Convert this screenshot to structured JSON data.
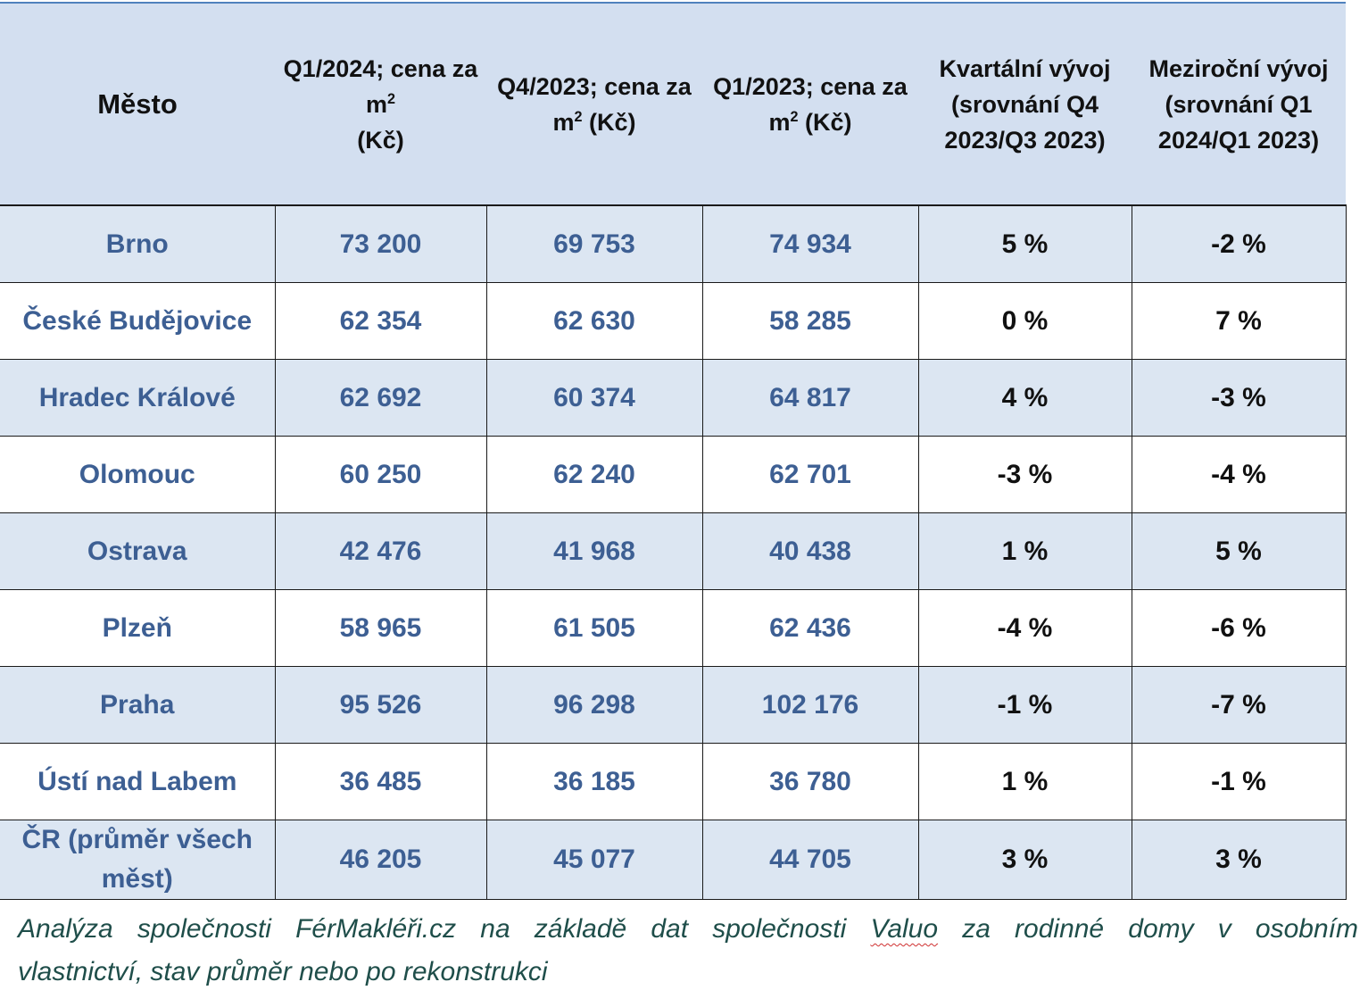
{
  "table": {
    "headers": {
      "city": "Město",
      "q1_2024": {
        "text": "Q1/2024; cena za m",
        "sup": "2",
        "unit": "(Kč)"
      },
      "q4_2023": {
        "text": "Q4/2023; cena za m",
        "sup": "2",
        "unit": "(Kč)"
      },
      "q1_2023": {
        "text": "Q1/2023; cena za m",
        "sup": "2",
        "unit": "(Kč)"
      },
      "quarterly": "Kvartální vývoj (srovnání Q4 2023/Q3 2023)",
      "yearly": "Meziroční vývoj (srovnání Q1 2024/Q1 2023)"
    },
    "rows": [
      {
        "city": "Brno",
        "q1_2024": "73 200",
        "q4_2023": "69 753",
        "q1_2023": "74 934",
        "quarterly": "5 %",
        "yearly": "-2 %"
      },
      {
        "city": "České Budějovice",
        "q1_2024": "62 354",
        "q4_2023": "62 630",
        "q1_2023": "58 285",
        "quarterly": "0 %",
        "yearly": "7 %"
      },
      {
        "city": "Hradec Králové",
        "q1_2024": "62 692",
        "q4_2023": "60 374",
        "q1_2023": "64 817",
        "quarterly": "4 %",
        "yearly": "-3 %"
      },
      {
        "city": "Olomouc",
        "q1_2024": "60 250",
        "q4_2023": "62 240",
        "q1_2023": "62 701",
        "quarterly": "-3 %",
        "yearly": "-4 %"
      },
      {
        "city": "Ostrava",
        "q1_2024": "42 476",
        "q4_2023": "41 968",
        "q1_2023": "40 438",
        "quarterly": "1 %",
        "yearly": "5 %"
      },
      {
        "city": "Plzeň",
        "q1_2024": "58 965",
        "q4_2023": "61 505",
        "q1_2023": "62 436",
        "quarterly": "-4 %",
        "yearly": "-6 %"
      },
      {
        "city": "Praha",
        "q1_2024": "95 526",
        "q4_2023": "96 298",
        "q1_2023": "102 176",
        "quarterly": "-1 %",
        "yearly": "-7 %"
      },
      {
        "city": "Ústí nad Labem",
        "q1_2024": "36 485",
        "q4_2023": "36 185",
        "q1_2023": "36 780",
        "quarterly": "1 %",
        "yearly": "-1 %"
      },
      {
        "city": "ČR (průměr všech měst)",
        "q1_2024": "46 205",
        "q4_2023": "45 077",
        "q1_2023": "44 705",
        "quarterly": "3 %",
        "yearly": "3 %"
      }
    ]
  },
  "note": {
    "line1_before": "Analýza společnosti FérMakléři.cz na základě dat společnosti ",
    "line1_marked": "Valuo",
    "line1_after": " za rodinné domy v osobním",
    "line2": "vlastnictví, stav průměr nebo po rekonstrukci"
  },
  "colors": {
    "header_bg": "#d3dff0",
    "shaded_row_bg": "#dce6f2",
    "value_blue": "#3d5f93",
    "note_text": "#1f4e4a"
  }
}
